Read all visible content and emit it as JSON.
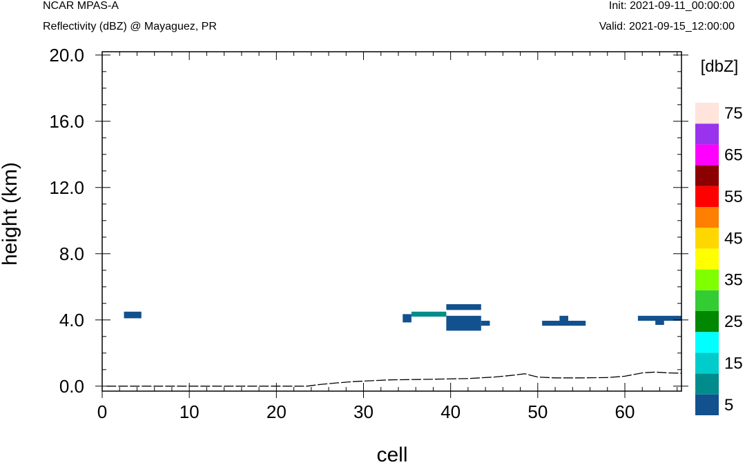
{
  "header": {
    "left_line1": "NCAR MPAS-A",
    "left_line2": "Reflectivity (dBZ) @ Mayaguez, PR",
    "right_line1": "Init: 2021-09-11_00:00:00",
    "right_line2": "Valid: 2021-09-15_12:00:00"
  },
  "chart_data": {
    "type": "heatmap",
    "xlabel": "cell",
    "ylabel": "height (km)",
    "xlim": [
      0,
      66.5
    ],
    "ylim": [
      -0.3,
      20.2
    ],
    "x_ticks": [
      0,
      10,
      20,
      30,
      40,
      50,
      60
    ],
    "y_ticks": [
      0.0,
      4.0,
      8.0,
      12.0,
      16.0,
      20.0
    ],
    "y_tick_labels": [
      "0.0",
      "4.0",
      "8.0",
      "12.0",
      "16.0",
      "20.0"
    ],
    "colorbar": {
      "unit_label": "[dbZ]",
      "levels": [
        5,
        10,
        15,
        20,
        25,
        30,
        35,
        40,
        45,
        50,
        55,
        60,
        65,
        70,
        75
      ],
      "labels": [
        "5",
        "15",
        "25",
        "35",
        "45",
        "55",
        "65",
        "75"
      ],
      "colors": [
        "#12518e",
        "#008c8c",
        "#00cccc",
        "#00ffff",
        "#008800",
        "#33cc33",
        "#7fff00",
        "#ffff00",
        "#ffd700",
        "#ff7f00",
        "#ff0000",
        "#8b0000",
        "#ff00ff",
        "#9933ee",
        "#ffe4dc"
      ]
    },
    "cells": [
      {
        "x0": 2.5,
        "x1": 4.5,
        "y0": 4.1,
        "y1": 4.5,
        "dbz": 5
      },
      {
        "x0": 34.5,
        "x1": 35.5,
        "y0": 3.85,
        "y1": 4.35,
        "dbz": 5
      },
      {
        "x0": 35.5,
        "x1": 39.5,
        "y0": 4.2,
        "y1": 4.5,
        "dbz": 10
      },
      {
        "x0": 39.5,
        "x1": 43.5,
        "y0": 4.6,
        "y1": 4.95,
        "dbz": 5
      },
      {
        "x0": 39.5,
        "x1": 43.5,
        "y0": 3.35,
        "y1": 4.25,
        "dbz": 5
      },
      {
        "x0": 43.5,
        "x1": 44.5,
        "y0": 3.65,
        "y1": 3.95,
        "dbz": 5
      },
      {
        "x0": 50.5,
        "x1": 55.5,
        "y0": 3.65,
        "y1": 3.95,
        "dbz": 5
      },
      {
        "x0": 52.5,
        "x1": 53.5,
        "y0": 3.95,
        "y1": 4.25,
        "dbz": 5
      },
      {
        "x0": 61.5,
        "x1": 66.5,
        "y0": 3.95,
        "y1": 4.25,
        "dbz": 5
      },
      {
        "x0": 63.5,
        "x1": 64.5,
        "y0": 3.7,
        "y1": 3.95,
        "dbz": 5
      }
    ],
    "terrain": {
      "x": [
        0.5,
        23.5,
        25,
        27,
        29,
        31,
        33,
        36,
        39,
        42,
        45,
        47,
        48.5,
        50,
        52,
        55,
        58,
        60,
        62,
        63.5,
        65,
        66.5
      ],
      "y": [
        0.0,
        0.0,
        0.1,
        0.2,
        0.28,
        0.33,
        0.38,
        0.4,
        0.43,
        0.46,
        0.55,
        0.65,
        0.75,
        0.55,
        0.5,
        0.5,
        0.52,
        0.6,
        0.8,
        0.85,
        0.8,
        0.78
      ]
    }
  }
}
